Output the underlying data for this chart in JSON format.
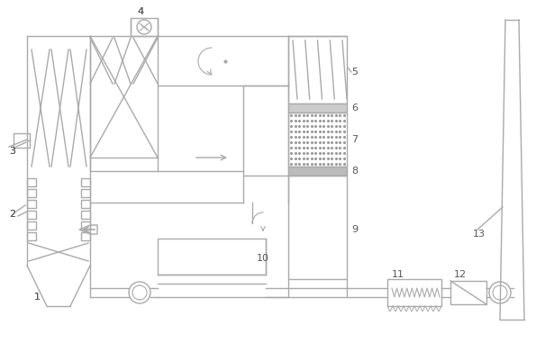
{
  "lc": "#aaaaaa",
  "lw": 1.0,
  "bg": "#ffffff",
  "fc": "#888888"
}
